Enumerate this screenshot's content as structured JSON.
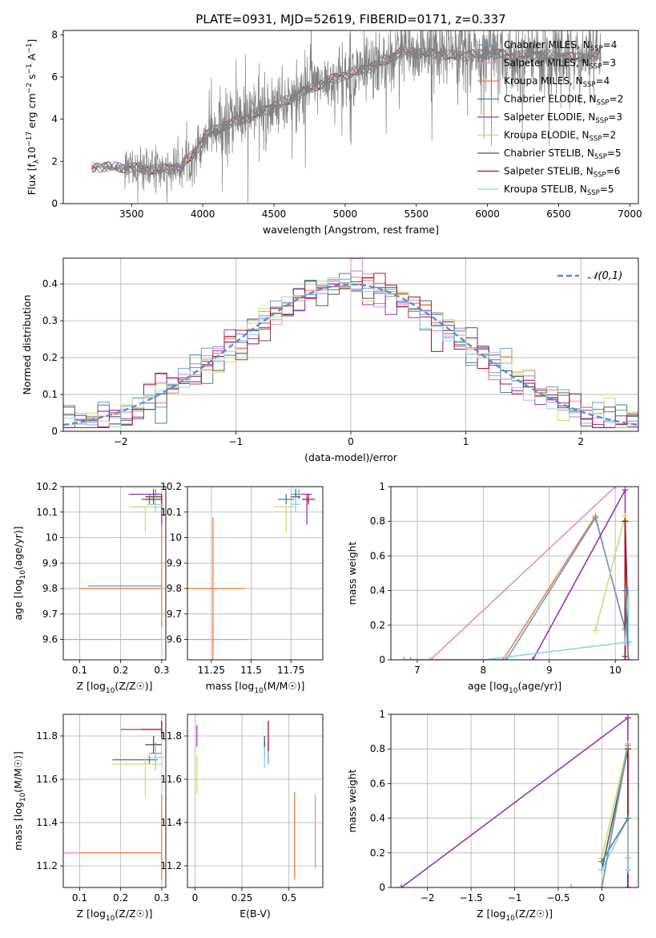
{
  "figure": {
    "title": "PLATE=0931, MJD=52619, FIBERID=0171, z=0.337"
  },
  "models": [
    {
      "name": "Chabrier MILES, N_SSP=4",
      "imf": "Chabrier",
      "lib": "MILES",
      "nssp": "4",
      "color": "#6a9bd8"
    },
    {
      "name": "Salpeter MILES, N_SSP=3",
      "imf": "Salpeter",
      "lib": "MILES",
      "nssp": "3",
      "color": "#e88bc4"
    },
    {
      "name": "Kroupa MILES, N_SSP=4",
      "imf": "Kroupa",
      "lib": "MILES",
      "nssp": "4",
      "color": "#f07f3c"
    },
    {
      "name": "Chabrier ELODIE, N_SSP=2",
      "imf": "Chabrier",
      "lib": "ELODIE",
      "nssp": "2",
      "color": "#4f7f8f"
    },
    {
      "name": "Salpeter ELODIE, N_SSP=3",
      "imf": "Salpeter",
      "lib": "ELODIE",
      "nssp": "3",
      "color": "#9a33b5"
    },
    {
      "name": "Kroupa ELODIE, N_SSP=2",
      "imf": "Kroupa",
      "lib": "ELODIE",
      "nssp": "2",
      "color": "#c8e064"
    },
    {
      "name": "Chabrier STELIB, N_SSP=5",
      "imf": "Chabrier",
      "lib": "STELIB",
      "nssp": "5",
      "color": "#555555"
    },
    {
      "name": "Salpeter STELIB, N_SSP=6",
      "imf": "Salpeter",
      "lib": "STELIB",
      "nssp": "6",
      "color": "#b0102a"
    },
    {
      "name": "Kroupa STELIB, N_SSP=5",
      "imf": "Kroupa",
      "lib": "STELIB",
      "nssp": "5",
      "color": "#8fd3e8"
    }
  ],
  "chart_data": [
    {
      "id": "spectrum",
      "type": "line",
      "title": "PLATE=0931, MJD=52619, FIBERID=0171, z=0.337",
      "xlabel": "wavelength [Angstrom, rest frame]",
      "ylabel": "Flux [f_λ10^-17 erg cm^-2 s^-1 A^-1]",
      "xlim": [
        3020,
        7060
      ],
      "ylim": [
        0,
        8.2
      ],
      "xticks": [
        3500,
        4000,
        4500,
        5000,
        5500,
        6000,
        6500,
        7000
      ],
      "yticks": [
        0,
        2,
        4,
        6,
        8
      ],
      "data_color": "#808080",
      "data_x_range": [
        3220,
        6800
      ],
      "continuum": {
        "x": [
          3220,
          3300,
          3500,
          3700,
          3850,
          3950,
          4050,
          4200,
          4400,
          4600,
          4800,
          5000,
          5200,
          5400,
          5600,
          5800,
          6000,
          6200,
          6400,
          6600,
          6800
        ],
        "y": [
          1.7,
          1.75,
          1.7,
          1.6,
          1.75,
          2.5,
          3.4,
          3.8,
          4.3,
          4.9,
          5.6,
          6.1,
          6.5,
          7.2,
          7.1,
          7.0,
          7.1,
          7.0,
          7.05,
          6.9,
          7.0
        ]
      },
      "legend_location": "upper right"
    },
    {
      "id": "residuals",
      "type": "histogram",
      "xlabel": "(data-model)/error",
      "ylabel": "Normed distribution",
      "xlim": [
        -2.5,
        2.5
      ],
      "ylim": [
        0,
        0.47
      ],
      "xticks": [
        -2,
        -1,
        0,
        1,
        2
      ],
      "yticks": [
        0.0,
        0.1,
        0.2,
        0.3,
        0.4
      ],
      "reference_curve": {
        "name": "𝒩(0,1)",
        "color": "#5b8bd8",
        "style": "dashed"
      },
      "legend_location": "upper right"
    },
    {
      "id": "age-vs-Z",
      "type": "errorbar",
      "xlabel": "Z [log10(Z/Z☉)]",
      "ylabel": "age  [log10(age/yr)]",
      "xlim": [
        0.06,
        0.31
      ],
      "ylim": [
        9.52,
        10.2
      ],
      "xticks": [
        0.1,
        0.2,
        0.3
      ],
      "yticks": [
        9.6,
        9.7,
        9.8,
        9.9,
        10.0,
        10.1,
        10.2
      ],
      "points": [
        {
          "model": 0,
          "x": 0.285,
          "xerr": [
            0.015,
            0.015
          ],
          "y": 10.17,
          "yerr": [
            0.02,
            0.02
          ]
        },
        {
          "model": 1,
          "x": 0.3,
          "xerr": [
            0.24,
            0.0
          ],
          "y": 9.6,
          "yerr": [
            0.0,
            0.0
          ]
        },
        {
          "model": 2,
          "x": 0.3,
          "xerr": [
            0.2,
            0.0
          ],
          "y": 9.8,
          "yerr": [
            0.15,
            0.3
          ]
        },
        {
          "model": 3,
          "x": 0.27,
          "xerr": [
            0.02,
            0.02
          ],
          "y": 10.15,
          "yerr": [
            0.02,
            0.02
          ]
        },
        {
          "model": 4,
          "x": 0.3,
          "xerr": [
            0.08,
            0.0
          ],
          "y": 10.17,
          "yerr": [
            0.12,
            0.0
          ]
        },
        {
          "model": 5,
          "x": 0.26,
          "xerr": [
            0.04,
            0.04
          ],
          "y": 10.12,
          "yerr": [
            0.1,
            0.0
          ]
        },
        {
          "model": 6,
          "x": 0.28,
          "xerr": [
            0.02,
            0.02
          ],
          "y": 10.16,
          "yerr": [
            0.03,
            0.03
          ]
        },
        {
          "model": 7,
          "x": 0.3,
          "xerr": [
            0.04,
            0.0
          ],
          "y": 10.15,
          "yerr": [
            0.02,
            0.02
          ]
        },
        {
          "model": 8,
          "x": 0.285,
          "xerr": [
            0.02,
            0.02
          ],
          "y": 10.13,
          "yerr": [
            0.03,
            0.03
          ]
        },
        {
          "model": 0,
          "x": 0.3,
          "xerr": [
            0.18,
            0.0
          ],
          "y": 9.81,
          "yerr": [
            0.0,
            0.0
          ]
        }
      ]
    },
    {
      "id": "age-vs-mass",
      "type": "errorbar",
      "xlabel": "mass [log10(M/M☉)]",
      "ylabel": "",
      "xlim": [
        11.1,
        11.95
      ],
      "ylim": [
        9.52,
        10.2
      ],
      "xticks": [
        11.25,
        11.5,
        11.75
      ],
      "yticks": [
        9.6,
        9.7,
        9.8,
        9.9,
        10.0,
        10.1,
        10.2
      ],
      "points": [
        {
          "model": 0,
          "x": 11.8,
          "xerr": [
            0.05,
            0.05
          ],
          "y": 10.17,
          "yerr": [
            0.02,
            0.02
          ]
        },
        {
          "model": 1,
          "x": 11.26,
          "xerr": [
            0.22,
            0.22
          ],
          "y": 9.6,
          "yerr": [
            0.05,
            0.05
          ]
        },
        {
          "model": 2,
          "x": 11.26,
          "xerr": [
            0.2,
            0.2
          ],
          "y": 9.8,
          "yerr": [
            0.28,
            0.28
          ]
        },
        {
          "model": 3,
          "x": 11.72,
          "xerr": [
            0.05,
            0.05
          ],
          "y": 10.15,
          "yerr": [
            0.02,
            0.02
          ]
        },
        {
          "model": 4,
          "x": 11.85,
          "xerr": [
            0.03,
            0.03
          ],
          "y": 10.17,
          "yerr": [
            0.12,
            0.0
          ]
        },
        {
          "model": 5,
          "x": 11.72,
          "xerr": [
            0.08,
            0.05
          ],
          "y": 10.12,
          "yerr": [
            0.1,
            0.0
          ]
        },
        {
          "model": 6,
          "x": 11.78,
          "xerr": [
            0.03,
            0.03
          ],
          "y": 10.16,
          "yerr": [
            0.03,
            0.03
          ]
        },
        {
          "model": 7,
          "x": 11.86,
          "xerr": [
            0.04,
            0.04
          ],
          "y": 10.15,
          "yerr": [
            0.02,
            0.02
          ]
        },
        {
          "model": 8,
          "x": 11.78,
          "xerr": [
            0.03,
            0.03
          ],
          "y": 10.13,
          "yerr": [
            0.03,
            0.03
          ]
        }
      ]
    },
    {
      "id": "weight-vs-age",
      "type": "line",
      "xlabel": "age  [log10(age/yr)]",
      "ylabel": "mass weight",
      "xlim": [
        6.6,
        10.35
      ],
      "ylim": [
        0,
        1
      ],
      "xticks": [
        7,
        8,
        9,
        10
      ],
      "yticks": [
        0.0,
        0.2,
        0.4,
        0.6,
        0.8,
        1.0
      ],
      "series": [
        {
          "model": 1,
          "x": [
            7.2,
            10.0
          ],
          "y": [
            0.0,
            1.0
          ]
        },
        {
          "model": 2,
          "x": [
            6.8,
            8.3,
            9.7,
            10.15
          ],
          "y": [
            0.0,
            0.0,
            0.83,
            0.17
          ]
        },
        {
          "model": 0,
          "x": [
            6.9,
            8.35,
            9.7,
            10.15
          ],
          "y": [
            0.0,
            0.0,
            0.82,
            0.18
          ]
        },
        {
          "model": 4,
          "x": [
            8.75,
            10.15,
            10.15
          ],
          "y": [
            0.0,
            0.98,
            0.02
          ]
        },
        {
          "model": 5,
          "x": [
            9.7,
            10.15,
            10.15
          ],
          "y": [
            0.17,
            0.83,
            0.17
          ]
        },
        {
          "model": 6,
          "x": [
            10.15,
            10.15,
            10.2
          ],
          "y": [
            0.8,
            0.1,
            0.1
          ]
        },
        {
          "model": 7,
          "x": [
            10.15,
            10.15,
            10.2
          ],
          "y": [
            0.0,
            0.8,
            0.1
          ]
        },
        {
          "model": 8,
          "x": [
            8.0,
            10.15,
            10.2,
            10.2
          ],
          "y": [
            0.0,
            0.1,
            0.4,
            0.1
          ]
        },
        {
          "model": 3,
          "x": [
            10.15,
            10.2
          ],
          "y": [
            0.4,
            0.0
          ]
        }
      ]
    },
    {
      "id": "mass-vs-Z",
      "type": "errorbar",
      "xlabel": "Z [log10(Z/Z☉)]",
      "ylabel": "mass [log10(M/M☉)]",
      "xlim": [
        0.06,
        0.31
      ],
      "ylim": [
        11.1,
        11.9
      ],
      "xticks": [
        0.1,
        0.2,
        0.3
      ],
      "yticks": [
        11.2,
        11.4,
        11.6,
        11.8
      ],
      "points": [
        {
          "model": 0,
          "x": 0.285,
          "xerr": [
            0.015,
            0.015
          ],
          "y": 11.72,
          "yerr": [
            0.05,
            0.05
          ]
        },
        {
          "model": 1,
          "x": 0.3,
          "xerr": [
            0.24,
            0.0
          ],
          "y": 11.26,
          "yerr": [
            0.0,
            0.0
          ]
        },
        {
          "model": 2,
          "x": 0.3,
          "xerr": [
            0.2,
            0.0
          ],
          "y": 11.26,
          "yerr": [
            0.12,
            0.27
          ]
        },
        {
          "model": 3,
          "x": 0.27,
          "xerr": [
            0.09,
            0.02
          ],
          "y": 11.69,
          "yerr": [
            0.02,
            0.02
          ]
        },
        {
          "model": 4,
          "x": 0.3,
          "xerr": [
            0.1,
            0.0
          ],
          "y": 11.83,
          "yerr": [
            0.04,
            0.04
          ]
        },
        {
          "model": 5,
          "x": 0.26,
          "xerr": [
            0.08,
            0.04
          ],
          "y": 11.67,
          "yerr": [
            0.15,
            0.03
          ]
        },
        {
          "model": 6,
          "x": 0.28,
          "xerr": [
            0.02,
            0.02
          ],
          "y": 11.76,
          "yerr": [
            0.04,
            0.04
          ]
        },
        {
          "model": 7,
          "x": 0.3,
          "xerr": [
            0.05,
            0.0
          ],
          "y": 11.83,
          "yerr": [
            0.04,
            0.04
          ]
        },
        {
          "model": 8,
          "x": 0.285,
          "xerr": [
            0.02,
            0.02
          ],
          "y": 11.7,
          "yerr": [
            0.06,
            0.06
          ]
        }
      ]
    },
    {
      "id": "mass-vs-ebv",
      "type": "errorbar",
      "xlabel": "E(B-V)",
      "ylabel": "",
      "xlim": [
        -0.04,
        0.68
      ],
      "ylim": [
        11.1,
        11.9
      ],
      "xticks": [
        0.0,
        0.25,
        0.5
      ],
      "yticks": [
        11.2,
        11.4,
        11.6,
        11.8
      ],
      "points": [
        {
          "model": 0,
          "x": 0.39,
          "xerr": [
            0,
            0
          ],
          "y": 11.72,
          "yerr": [
            0.05,
            0.05
          ]
        },
        {
          "model": 1,
          "x": 0.64,
          "xerr": [
            0,
            0
          ],
          "y": 11.36,
          "yerr": [
            0.17,
            0.17
          ]
        },
        {
          "model": 2,
          "x": 0.53,
          "xerr": [
            0,
            0
          ],
          "y": 11.34,
          "yerr": [
            0.2,
            0.2
          ]
        },
        {
          "model": 3,
          "x": 0.37,
          "xerr": [
            0,
            0
          ],
          "y": 11.74,
          "yerr": [
            0.04,
            0.04
          ]
        },
        {
          "model": 4,
          "x": 0.01,
          "xerr": [
            0,
            0
          ],
          "y": 11.8,
          "yerr": [
            0.05,
            0.05
          ]
        },
        {
          "model": 5,
          "x": 0.01,
          "xerr": [
            0,
            0
          ],
          "y": 11.62,
          "yerr": [
            0.09,
            0.09
          ]
        },
        {
          "model": 6,
          "x": 0.37,
          "xerr": [
            0,
            0
          ],
          "y": 11.76,
          "yerr": [
            0.04,
            0.04
          ]
        },
        {
          "model": 7,
          "x": 0.39,
          "xerr": [
            0,
            0
          ],
          "y": 11.8,
          "yerr": [
            0.07,
            0.07
          ]
        },
        {
          "model": 8,
          "x": 0.37,
          "xerr": [
            0,
            0
          ],
          "y": 11.7,
          "yerr": [
            0.05,
            0.05
          ]
        }
      ]
    },
    {
      "id": "weight-vs-Z",
      "type": "line",
      "xlabel": "Z [log10(Z/Z☉)]",
      "ylabel": "mass weight",
      "xlim": [
        -2.42,
        0.42
      ],
      "ylim": [
        0,
        1
      ],
      "xticks": [
        -2.0,
        -1.5,
        -1.0,
        -0.5,
        0.0
      ],
      "yticks": [
        0.0,
        0.2,
        0.4,
        0.6,
        0.8,
        1.0
      ],
      "series": [
        {
          "model": 4,
          "x": [
            -2.3,
            0.3,
            0.3
          ],
          "y": [
            0.0,
            0.98,
            0.0
          ]
        },
        {
          "model": 2,
          "x": [
            -0.35,
            0.0,
            0.3,
            0.3
          ],
          "y": [
            0.0,
            0.0,
            0.83,
            0.17
          ]
        },
        {
          "model": 1,
          "x": [
            0.0,
            0.3
          ],
          "y": [
            0.0,
            0.8
          ]
        },
        {
          "model": 5,
          "x": [
            0.0,
            0.3,
            0.3
          ],
          "y": [
            0.17,
            0.83,
            0.17
          ]
        },
        {
          "model": 6,
          "x": [
            0.0,
            0.3,
            0.3
          ],
          "y": [
            0.1,
            0.8,
            0.1
          ]
        },
        {
          "model": 7,
          "x": [
            0.3,
            0.3
          ],
          "y": [
            0.0,
            0.8
          ]
        },
        {
          "model": 8,
          "x": [
            0.0,
            0.3,
            0.3
          ],
          "y": [
            0.1,
            0.4,
            0.1
          ]
        },
        {
          "model": 3,
          "x": [
            0.0,
            0.3
          ],
          "y": [
            0.15,
            0.4
          ]
        },
        {
          "model": 0,
          "x": [
            0.0,
            0.3
          ],
          "y": [
            0.0,
            0.82
          ]
        }
      ]
    }
  ]
}
